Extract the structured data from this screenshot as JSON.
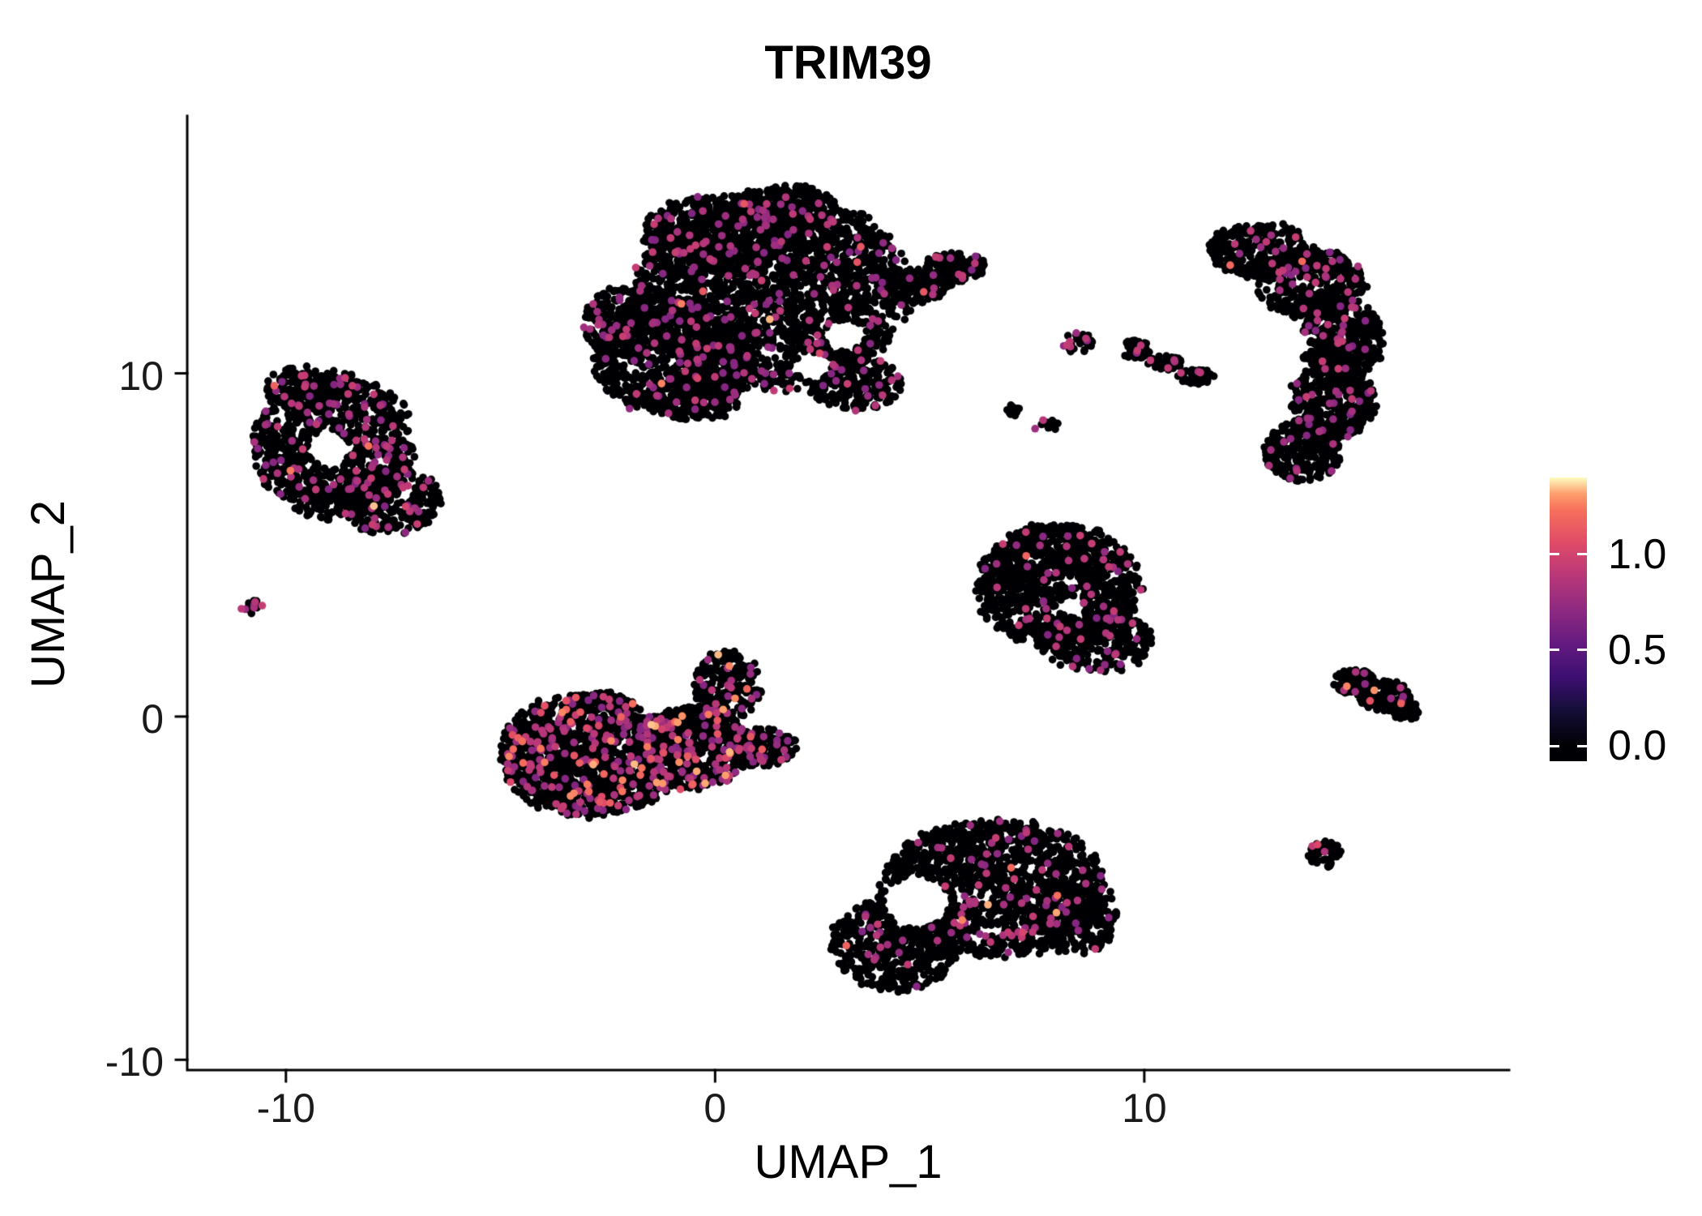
{
  "chart_data": {
    "type": "scatter",
    "title": "TRIM39",
    "xlabel": "UMAP_1",
    "ylabel": "UMAP_2",
    "xlim": [
      -12.3,
      18.5
    ],
    "ylim": [
      -10.3,
      17.5
    ],
    "xticks": [
      {
        "label": "-10",
        "value": -10
      },
      {
        "label": "0",
        "value": 0
      },
      {
        "label": "10",
        "value": 10
      }
    ],
    "yticks": [
      {
        "label": "-10",
        "value": -10
      },
      {
        "label": "0",
        "value": 0
      },
      {
        "label": "10",
        "value": 10
      }
    ],
    "grid": false,
    "legend_position": "right",
    "point_radius_px": 4.8,
    "seed": 1337,
    "value_scale_max": 1.4,
    "colormap_anchors": [
      {
        "t": 0.0,
        "hex": "#000004"
      },
      {
        "t": 0.13,
        "hex": "#140e36"
      },
      {
        "t": 0.25,
        "hex": "#3b0f70"
      },
      {
        "t": 0.38,
        "hex": "#641a80"
      },
      {
        "t": 0.5,
        "hex": "#8c2981"
      },
      {
        "t": 0.63,
        "hex": "#b73779"
      },
      {
        "t": 0.75,
        "hex": "#de4968"
      },
      {
        "t": 0.88,
        "hex": "#f7705c"
      },
      {
        "t": 0.94,
        "hex": "#fe9f6d"
      },
      {
        "t": 1.0,
        "hex": "#fcfdbf"
      }
    ],
    "colorbar": {
      "min": -0.08,
      "max": 1.4,
      "ticks": [
        {
          "label": "1.0",
          "value": 1.0
        },
        {
          "label": "0.5",
          "value": 0.5
        },
        {
          "label": "0.0",
          "value": 0.0
        }
      ],
      "tick_color": "#ffffff"
    },
    "clusters": [
      {
        "name": "top-center-large",
        "pos_frac": 0.06,
        "hi_frac": 0.03,
        "blobs": [
          {
            "cx": 1.3,
            "cy": 12.4,
            "rx": 3.2,
            "ry": 2.9,
            "n": 2300
          },
          {
            "cx": -1.0,
            "cy": 10.5,
            "rx": 1.9,
            "ry": 1.7,
            "n": 800
          },
          {
            "cx": 0.2,
            "cy": 14.2,
            "rx": 1.9,
            "ry": 1.0,
            "n": 400
          },
          {
            "cx": 1.6,
            "cy": 14.8,
            "rx": 1.2,
            "ry": 0.7,
            "n": 220
          },
          {
            "cx": -2.3,
            "cy": 11.5,
            "rx": 0.8,
            "ry": 1.0,
            "n": 180
          },
          {
            "cx": -0.5,
            "cy": 9.3,
            "rx": 1.1,
            "ry": 0.7,
            "n": 200
          },
          {
            "cx": 3.3,
            "cy": 9.7,
            "rx": 1.1,
            "ry": 0.8,
            "n": 200
          },
          {
            "cx": 4.6,
            "cy": 12.6,
            "rx": 0.9,
            "ry": 0.55,
            "n": 170
          },
          {
            "cx": 5.6,
            "cy": 13.1,
            "rx": 0.7,
            "ry": 0.45,
            "n": 130
          }
        ],
        "holes": [
          {
            "cx": 3.0,
            "cy": 11.1,
            "r": 0.45
          },
          {
            "cx": 2.3,
            "cy": 10.2,
            "r": 0.4
          }
        ]
      },
      {
        "name": "left-ring",
        "pos_frac": 0.075,
        "hi_frac": 0.02,
        "blobs": [
          {
            "cx": -8.9,
            "cy": 7.9,
            "rx": 1.9,
            "ry": 2.1,
            "n": 950
          },
          {
            "cx": -7.6,
            "cy": 6.3,
            "rx": 1.2,
            "ry": 1.0,
            "n": 300
          },
          {
            "cx": -9.6,
            "cy": 9.6,
            "rx": 0.9,
            "ry": 0.6,
            "n": 160
          }
        ],
        "holes": [
          {
            "cx": -9.0,
            "cy": 7.8,
            "r": 0.5
          }
        ]
      },
      {
        "name": "tiny-far-left",
        "pos_frac": 0.25,
        "hi_frac": 0,
        "blobs": [
          {
            "cx": -10.8,
            "cy": 3.2,
            "rx": 0.28,
            "ry": 0.26,
            "n": 14
          }
        ],
        "holes": []
      },
      {
        "name": "mid-left",
        "pos_frac": 0.13,
        "hi_frac": 0.22,
        "blobs": [
          {
            "cx": -2.9,
            "cy": -1.1,
            "rx": 2.1,
            "ry": 1.8,
            "n": 1500
          },
          {
            "cx": -0.6,
            "cy": -0.9,
            "rx": 1.4,
            "ry": 1.2,
            "n": 600
          },
          {
            "cx": 0.3,
            "cy": 0.9,
            "rx": 0.8,
            "ry": 1.0,
            "n": 220
          },
          {
            "cx": 1.1,
            "cy": -0.9,
            "rx": 0.8,
            "ry": 0.55,
            "n": 170
          }
        ],
        "holes": [
          {
            "cx": -1.4,
            "cy": 0.3,
            "r": 0.3
          }
        ]
      },
      {
        "name": "center-right",
        "pos_frac": 0.05,
        "hi_frac": 0.02,
        "blobs": [
          {
            "cx": 8.0,
            "cy": 3.8,
            "rx": 1.9,
            "ry": 1.8,
            "n": 1150
          },
          {
            "cx": 8.9,
            "cy": 2.2,
            "rx": 1.3,
            "ry": 0.9,
            "n": 320
          }
        ],
        "holes": [
          {
            "cx": 8.3,
            "cy": 3.2,
            "r": 0.3
          }
        ]
      },
      {
        "name": "bottom-center",
        "pos_frac": 0.06,
        "hi_frac": 0.07,
        "blobs": [
          {
            "cx": 6.5,
            "cy": -5.0,
            "rx": 2.6,
            "ry": 2.0,
            "n": 1300
          },
          {
            "cx": 4.2,
            "cy": -6.6,
            "rx": 1.5,
            "ry": 1.4,
            "n": 460
          },
          {
            "cx": 8.4,
            "cy": -5.9,
            "rx": 1.0,
            "ry": 1.0,
            "n": 220
          }
        ],
        "holes": [
          {
            "cx": 4.7,
            "cy": -5.4,
            "r": 0.75
          }
        ]
      },
      {
        "name": "right-crescent",
        "pos_frac": 0.06,
        "hi_frac": 0.02,
        "blobs": [
          {
            "cx": 12.7,
            "cy": 13.6,
            "rx": 1.2,
            "ry": 0.8,
            "n": 280
          },
          {
            "cx": 13.9,
            "cy": 12.6,
            "rx": 1.3,
            "ry": 1.0,
            "n": 420
          },
          {
            "cx": 14.6,
            "cy": 11.0,
            "rx": 1.0,
            "ry": 1.1,
            "n": 400
          },
          {
            "cx": 14.4,
            "cy": 9.2,
            "rx": 1.0,
            "ry": 1.1,
            "n": 380
          },
          {
            "cx": 13.7,
            "cy": 7.7,
            "rx": 0.9,
            "ry": 0.9,
            "n": 260
          }
        ],
        "holes": [
          {
            "cx": 13.4,
            "cy": 10.9,
            "r": 0.45
          },
          {
            "cx": 13.1,
            "cy": 9.3,
            "r": 0.4
          }
        ]
      },
      {
        "name": "small-cluster-upper-middle",
        "pos_frac": 0.3,
        "hi_frac": 0,
        "blobs": [
          {
            "cx": 8.45,
            "cy": 10.9,
            "rx": 0.35,
            "ry": 0.3,
            "n": 30
          }
        ],
        "holes": []
      },
      {
        "name": "diagonal-streak",
        "pos_frac": 0.07,
        "hi_frac": 0,
        "blobs": [
          {
            "cx": 9.8,
            "cy": 10.7,
            "rx": 0.35,
            "ry": 0.28,
            "n": 45
          },
          {
            "cx": 10.5,
            "cy": 10.3,
            "rx": 0.4,
            "ry": 0.24,
            "n": 45
          },
          {
            "cx": 11.2,
            "cy": 9.9,
            "rx": 0.45,
            "ry": 0.22,
            "n": 45
          }
        ],
        "holes": []
      },
      {
        "name": "specks-middle",
        "pos_frac": 0.05,
        "hi_frac": 0,
        "blobs": [
          {
            "cx": 6.95,
            "cy": 8.9,
            "rx": 0.25,
            "ry": 0.2,
            "n": 10
          },
          {
            "cx": 7.7,
            "cy": 8.5,
            "rx": 0.3,
            "ry": 0.22,
            "n": 14
          }
        ],
        "holes": []
      },
      {
        "name": "right-small-arrow",
        "pos_frac": 0.05,
        "hi_frac": 0.3,
        "blobs": [
          {
            "cx": 14.9,
            "cy": 1.0,
            "rx": 0.5,
            "ry": 0.4,
            "n": 90
          },
          {
            "cx": 15.6,
            "cy": 0.6,
            "rx": 0.6,
            "ry": 0.45,
            "n": 130
          },
          {
            "cx": 16.1,
            "cy": 0.2,
            "rx": 0.35,
            "ry": 0.3,
            "n": 50
          }
        ],
        "holes": []
      },
      {
        "name": "bottom-right-small",
        "pos_frac": 0.06,
        "hi_frac": 0.5,
        "blobs": [
          {
            "cx": 14.2,
            "cy": -4.0,
            "rx": 0.4,
            "ry": 0.38,
            "n": 55
          }
        ],
        "holes": []
      }
    ]
  }
}
